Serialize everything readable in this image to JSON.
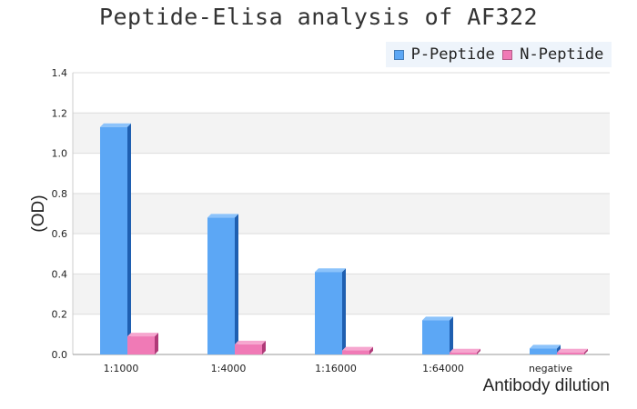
{
  "chart_data": {
    "type": "bar",
    "title": "Peptide-Elisa analysis of AF322",
    "xlabel": "Antibody dilution",
    "ylabel": "(OD)",
    "categories": [
      "1:1000",
      "1:4000",
      "1:16000",
      "1:64000",
      "negative"
    ],
    "series": [
      {
        "name": "P-Peptide",
        "values": [
          1.13,
          0.68,
          0.41,
          0.17,
          0.03
        ],
        "color": "#5ca7f5",
        "side_color": "#1f5fb0",
        "top_color": "#8cc3fb"
      },
      {
        "name": "N-Peptide",
        "values": [
          0.09,
          0.05,
          0.02,
          0.01,
          0.01
        ],
        "color": "#f07ab6",
        "side_color": "#b03a78",
        "top_color": "#f6a6cf"
      }
    ],
    "yticks": [
      "0.0",
      "0.2",
      "0.4",
      "0.6",
      "0.8",
      "1.0",
      "1.2",
      "1.4"
    ],
    "ylim": [
      0,
      1.4
    ],
    "legend_position": "top-right",
    "grid": true
  }
}
